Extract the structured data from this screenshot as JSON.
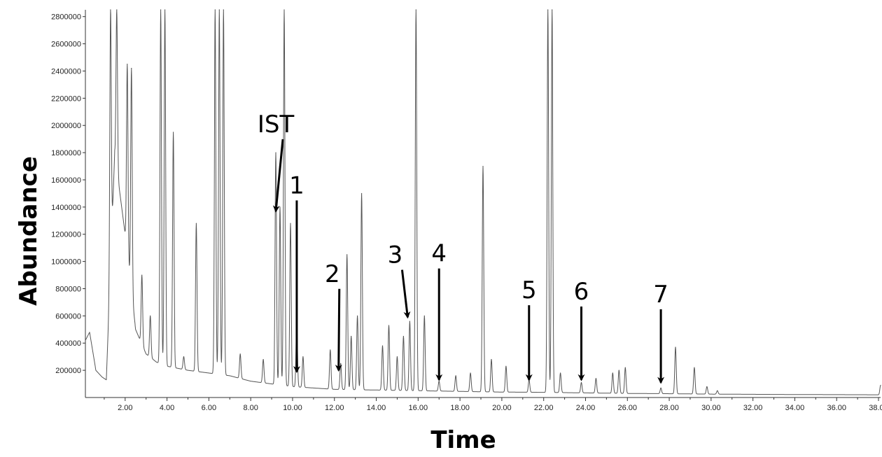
{
  "chart_data": {
    "type": "line",
    "title": "",
    "xlabel": "Time",
    "ylabel": "Abundance",
    "xlim": [
      0.1,
      38.1
    ],
    "ylim": [
      0,
      2850000
    ],
    "x_ticks": [
      "2.00",
      "4.00",
      "6.00",
      "8.00",
      "10.00",
      "12.00",
      "14.00",
      "16.00",
      "18.00",
      "20.00",
      "22.00",
      "24.00",
      "26.00",
      "28.00",
      "30.00",
      "32.00",
      "34.00",
      "36.00",
      "38.00"
    ],
    "y_ticks": [
      "200000",
      "400000",
      "600000",
      "800000",
      "1000000",
      "1200000",
      "1400000",
      "1600000",
      "1800000",
      "2000000",
      "2200000",
      "2400000",
      "2600000",
      "2800000"
    ],
    "grid": false,
    "baseline_points": [
      [
        0.1,
        420000
      ],
      [
        0.3,
        480000
      ],
      [
        0.6,
        200000
      ],
      [
        0.9,
        150000
      ],
      [
        1.1,
        130000
      ],
      [
        1.5,
        1800000
      ],
      [
        2.0,
        1200000
      ],
      [
        2.5,
        500000
      ],
      [
        3.0,
        320000
      ],
      [
        3.5,
        260000
      ],
      [
        4.0,
        230000
      ],
      [
        5.0,
        200000
      ],
      [
        6.0,
        180000
      ],
      [
        7.0,
        160000
      ],
      [
        8.0,
        120000
      ],
      [
        9.0,
        100000
      ],
      [
        10.0,
        80000
      ],
      [
        12.0,
        60000
      ],
      [
        14.0,
        55000
      ],
      [
        16.0,
        50000
      ],
      [
        18.0,
        45000
      ],
      [
        20.0,
        40000
      ],
      [
        22.0,
        38000
      ],
      [
        24.0,
        34000
      ],
      [
        26.0,
        30000
      ],
      [
        28.0,
        28000
      ],
      [
        30.0,
        25000
      ],
      [
        34.0,
        22000
      ],
      [
        38.1,
        20000
      ]
    ],
    "peaks": [
      {
        "x": 1.3,
        "y": 2850000
      },
      {
        "x": 1.6,
        "y": 2850000
      },
      {
        "x": 2.1,
        "y": 2450000
      },
      {
        "x": 2.3,
        "y": 2420000
      },
      {
        "x": 2.8,
        "y": 900000
      },
      {
        "x": 3.2,
        "y": 600000
      },
      {
        "x": 3.7,
        "y": 2850000
      },
      {
        "x": 3.9,
        "y": 2850000
      },
      {
        "x": 4.3,
        "y": 1950000
      },
      {
        "x": 4.8,
        "y": 300000
      },
      {
        "x": 5.4,
        "y": 1280000
      },
      {
        "x": 6.3,
        "y": 2850000
      },
      {
        "x": 6.5,
        "y": 2850000
      },
      {
        "x": 6.7,
        "y": 2850000
      },
      {
        "x": 7.5,
        "y": 320000
      },
      {
        "x": 8.6,
        "y": 280000
      },
      {
        "x": 9.2,
        "y": 1800000
      },
      {
        "x": 9.4,
        "y": 1400000
      },
      {
        "x": 9.6,
        "y": 2850000
      },
      {
        "x": 9.9,
        "y": 1280000
      },
      {
        "x": 10.2,
        "y": 550000
      },
      {
        "x": 10.5,
        "y": 300000
      },
      {
        "x": 11.8,
        "y": 350000
      },
      {
        "x": 12.3,
        "y": 250000
      },
      {
        "x": 12.6,
        "y": 1050000
      },
      {
        "x": 12.8,
        "y": 450000
      },
      {
        "x": 13.1,
        "y": 600000
      },
      {
        "x": 13.3,
        "y": 1500000
      },
      {
        "x": 14.3,
        "y": 380000
      },
      {
        "x": 14.6,
        "y": 530000
      },
      {
        "x": 15.0,
        "y": 300000
      },
      {
        "x": 15.3,
        "y": 450000
      },
      {
        "x": 15.6,
        "y": 560000
      },
      {
        "x": 15.9,
        "y": 2850000
      },
      {
        "x": 16.3,
        "y": 600000
      },
      {
        "x": 17.0,
        "y": 120000
      },
      {
        "x": 17.8,
        "y": 160000
      },
      {
        "x": 18.5,
        "y": 180000
      },
      {
        "x": 19.1,
        "y": 1700000
      },
      {
        "x": 19.5,
        "y": 280000
      },
      {
        "x": 20.2,
        "y": 230000
      },
      {
        "x": 21.3,
        "y": 130000
      },
      {
        "x": 22.2,
        "y": 2850000
      },
      {
        "x": 22.4,
        "y": 2850000
      },
      {
        "x": 22.8,
        "y": 180000
      },
      {
        "x": 23.8,
        "y": 110000
      },
      {
        "x": 24.5,
        "y": 140000
      },
      {
        "x": 25.3,
        "y": 180000
      },
      {
        "x": 25.6,
        "y": 200000
      },
      {
        "x": 25.9,
        "y": 220000
      },
      {
        "x": 27.6,
        "y": 70000
      },
      {
        "x": 28.3,
        "y": 370000
      },
      {
        "x": 29.2,
        "y": 220000
      },
      {
        "x": 29.8,
        "y": 80000
      },
      {
        "x": 30.3,
        "y": 50000
      },
      {
        "x": 38.1,
        "y": 90000
      }
    ],
    "annotations": [
      {
        "label": "IST",
        "text_x": 9.2,
        "text_y": 1950000,
        "target_x": 9.2,
        "target_y": 1370000,
        "kind": "diagonal"
      },
      {
        "label": "1",
        "text_x": 10.2,
        "text_y": 1500000,
        "target_x": 10.2,
        "target_y": 190000,
        "kind": "vertical"
      },
      {
        "label": "2",
        "text_x": 11.9,
        "text_y": 850000,
        "target_x": 12.2,
        "target_y": 200000,
        "kind": "diagonal"
      },
      {
        "label": "3",
        "text_x": 14.9,
        "text_y": 990000,
        "target_x": 15.5,
        "target_y": 590000,
        "kind": "diagonal"
      },
      {
        "label": "4",
        "text_x": 17.0,
        "text_y": 1000000,
        "target_x": 17.0,
        "target_y": 130000,
        "kind": "vertical"
      },
      {
        "label": "5",
        "text_x": 21.3,
        "text_y": 730000,
        "target_x": 21.3,
        "target_y": 130000,
        "kind": "vertical"
      },
      {
        "label": "6",
        "text_x": 23.8,
        "text_y": 720000,
        "target_x": 23.8,
        "target_y": 130000,
        "kind": "vertical"
      },
      {
        "label": "7",
        "text_x": 27.6,
        "text_y": 700000,
        "target_x": 27.6,
        "target_y": 110000,
        "kind": "vertical"
      }
    ]
  }
}
